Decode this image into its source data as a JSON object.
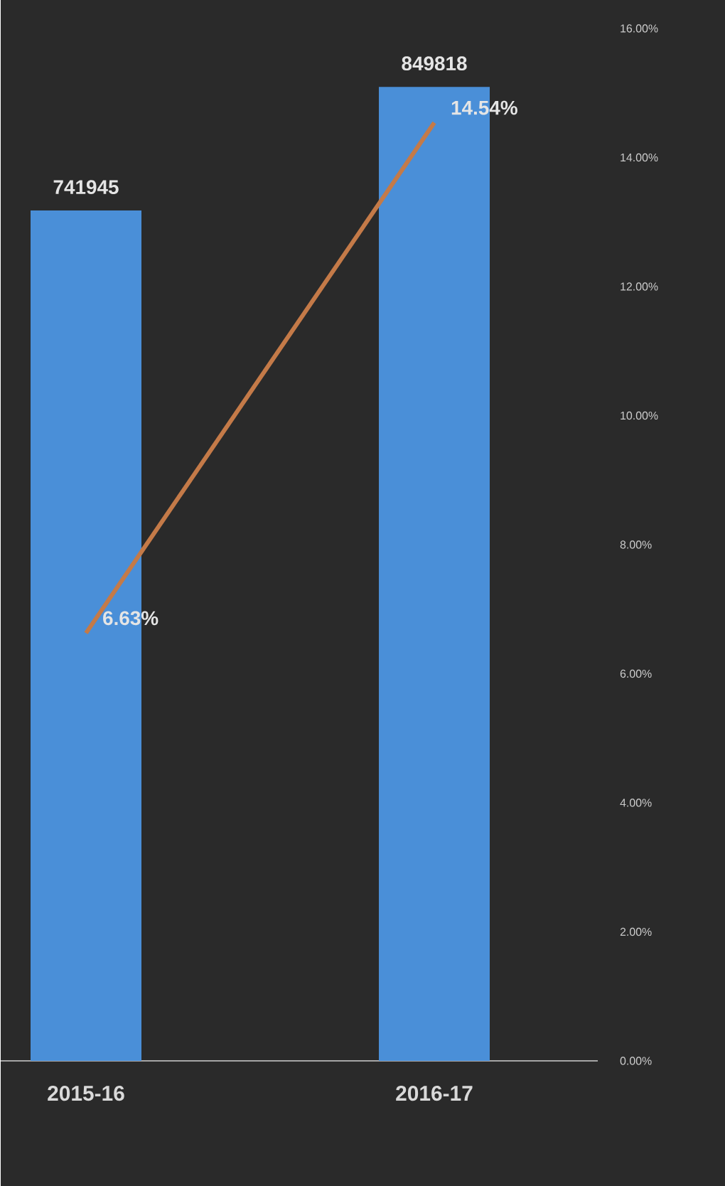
{
  "chart_data": {
    "type": "bar",
    "categories": [
      "2015-16",
      "2016-17"
    ],
    "series": [
      {
        "color": "#4a8fd8",
        "values": [
          741945,
          849818
        ],
        "value_labels": [
          "741945",
          "849818"
        ]
      },
      {
        "type": "line",
        "axis": "y2",
        "color": "#c47a48",
        "values": [
          6.63,
          14.54
        ],
        "value_labels": [
          "6.63%",
          "14.54%"
        ]
      }
    ],
    "y2lim": [
      0,
      16
    ],
    "y2ticks": [
      {
        "value": 0,
        "label": "0.00%"
      },
      {
        "value": 2,
        "label": "2.00%"
      },
      {
        "value": 4,
        "label": "4.00%"
      },
      {
        "value": 6,
        "label": "6.00%"
      },
      {
        "value": 8,
        "label": "8.00%"
      },
      {
        "value": 10,
        "label": "10.00%"
      },
      {
        "value": 12,
        "label": "12.00%"
      },
      {
        "value": 14,
        "label": "14.00%"
      },
      {
        "value": 16,
        "label": "16.00%"
      }
    ]
  }
}
